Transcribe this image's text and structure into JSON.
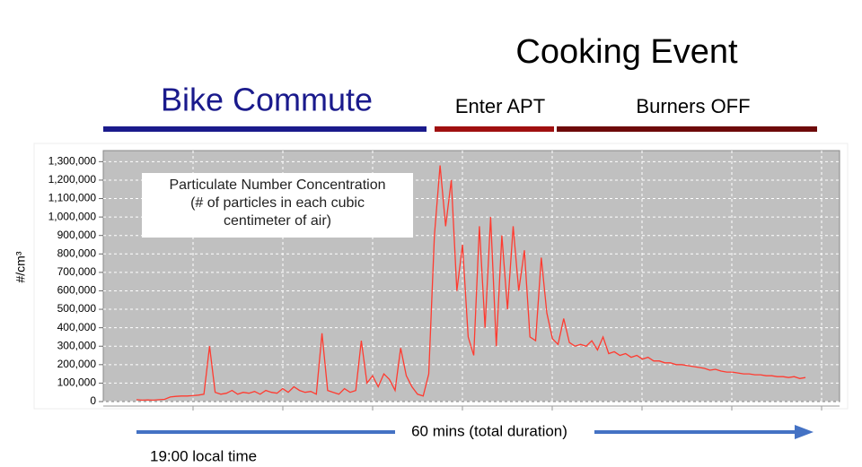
{
  "chart_data": {
    "type": "line",
    "title": "Cooking Event",
    "phase_labels": [
      "Bike Commute",
      "Enter APT",
      "Burners OFF"
    ],
    "phase_colors": [
      "#1a1a8c",
      "#a01010",
      "#6e0a0a"
    ],
    "annotation": "Particulate Number Concentration\n(# of particles in each cubic\ncentimeter of air)",
    "y_label": "#/cm³",
    "duration_label": "60 mins (total duration)",
    "start_label": "19:00 local time",
    "color": "#ff3b30",
    "grid": true,
    "ylim": [
      0,
      1360000
    ],
    "yticks": [
      {
        "value": 0,
        "label": "0"
      },
      {
        "value": 100000,
        "label": "100,000"
      },
      {
        "value": 200000,
        "label": "200,000"
      },
      {
        "value": 300000,
        "label": "300,000"
      },
      {
        "value": 400000,
        "label": "400,000"
      },
      {
        "value": 500000,
        "label": "500,000"
      },
      {
        "value": 600000,
        "label": "600,000"
      },
      {
        "value": 700000,
        "label": "700,000"
      },
      {
        "value": 800000,
        "label": "800,000"
      },
      {
        "value": 900000,
        "label": "900,000"
      },
      {
        "value": 1000000,
        "label": "1,000,000"
      },
      {
        "value": 1100000,
        "label": "1,100,000"
      },
      {
        "value": 1200000,
        "label": "1,200,000"
      },
      {
        "value": 1300000,
        "label": "1,300,000"
      }
    ],
    "values": [
      10000,
      8000,
      9000,
      8000,
      10000,
      12000,
      25000,
      28000,
      30000,
      30000,
      32000,
      35000,
      40000,
      300000,
      50000,
      40000,
      45000,
      60000,
      40000,
      50000,
      45000,
      55000,
      40000,
      60000,
      50000,
      45000,
      70000,
      50000,
      80000,
      60000,
      50000,
      55000,
      40000,
      370000,
      60000,
      50000,
      40000,
      70000,
      50000,
      60000,
      330000,
      100000,
      140000,
      80000,
      150000,
      120000,
      60000,
      290000,
      140000,
      80000,
      40000,
      30000,
      150000,
      900000,
      1280000,
      950000,
      1200000,
      600000,
      850000,
      350000,
      250000,
      950000,
      400000,
      1000000,
      300000,
      900000,
      500000,
      950000,
      600000,
      820000,
      350000,
      330000,
      780000,
      480000,
      340000,
      310000,
      450000,
      320000,
      300000,
      310000,
      300000,
      330000,
      280000,
      350000,
      260000,
      270000,
      250000,
      260000,
      240000,
      250000,
      230000,
      240000,
      220000,
      220000,
      210000,
      210000,
      200000,
      200000,
      195000,
      190000,
      185000,
      180000,
      170000,
      175000,
      165000,
      160000,
      160000,
      155000,
      150000,
      150000,
      145000,
      145000,
      140000,
      140000,
      135000,
      135000,
      130000,
      135000,
      125000,
      130000
    ]
  }
}
